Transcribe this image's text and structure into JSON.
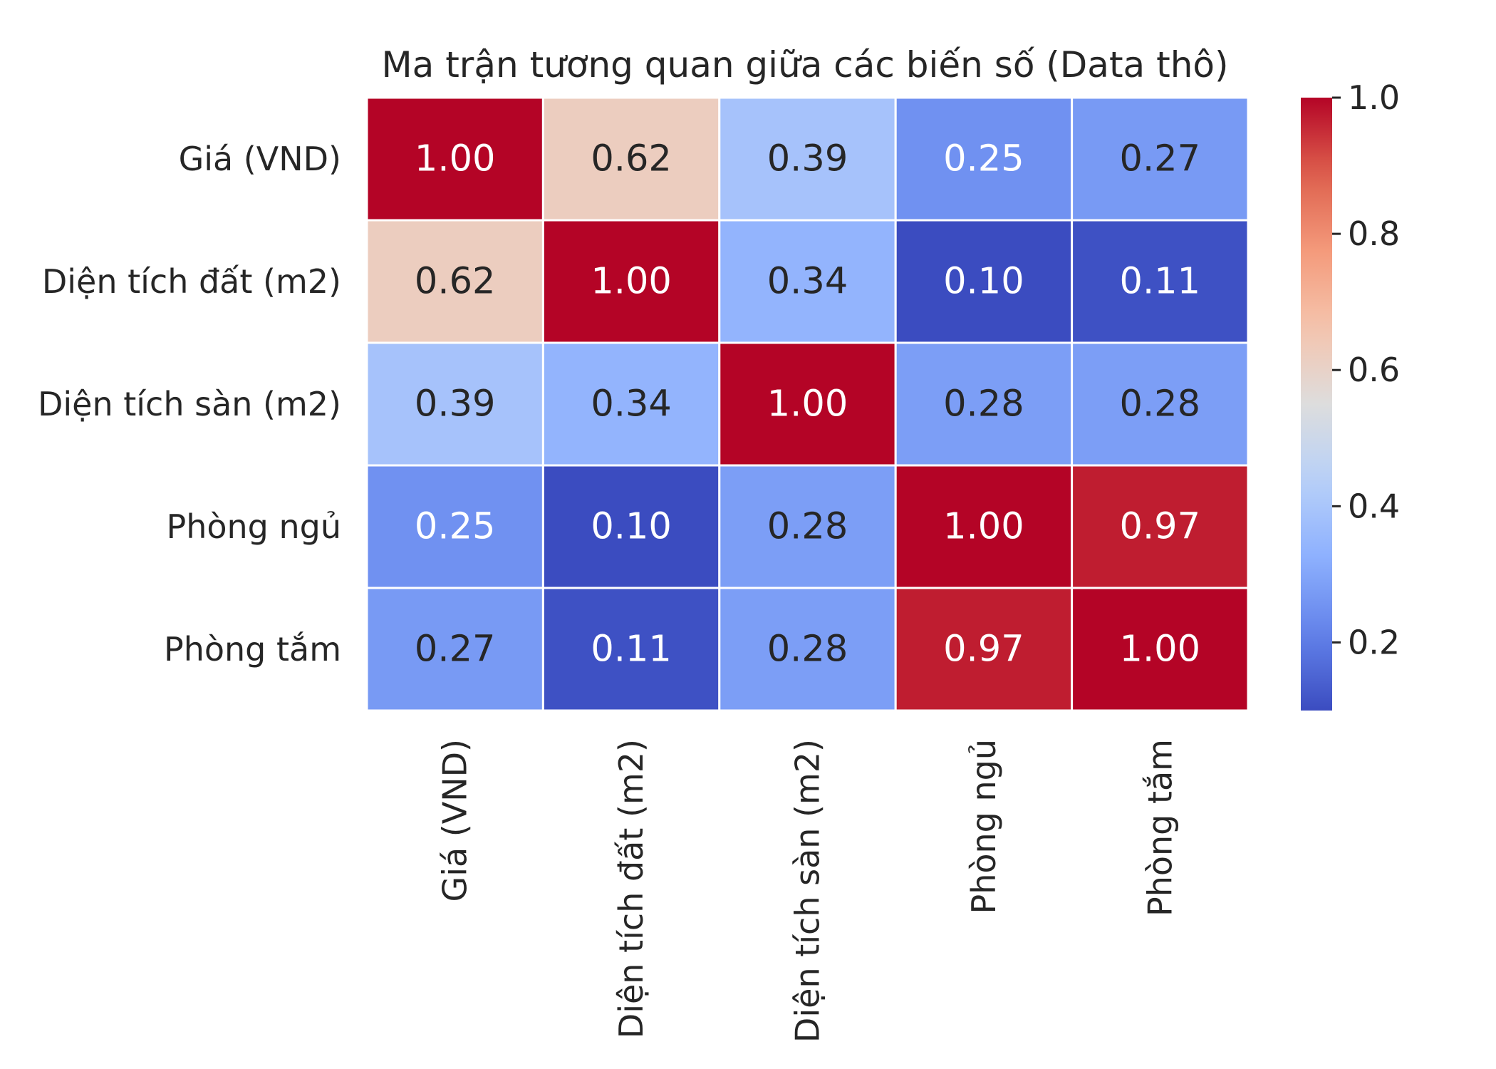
{
  "chart_data": {
    "type": "heatmap",
    "title": "Ma trận tương quan giữa các biến số (Data thô)",
    "rows": [
      "Giá (VND)",
      "Diện tích đất (m2)",
      "Diện tích sàn (m2)",
      "Phòng ngủ",
      "Phòng tắm"
    ],
    "columns": [
      "Giá (VND)",
      "Diện tích đất (m2)",
      "Diện tích sàn (m2)",
      "Phòng ngủ",
      "Phòng tắm"
    ],
    "values": [
      [
        1.0,
        0.62,
        0.39,
        0.25,
        0.27
      ],
      [
        0.62,
        1.0,
        0.34,
        0.1,
        0.11
      ],
      [
        0.39,
        0.34,
        1.0,
        0.28,
        0.28
      ],
      [
        0.25,
        0.1,
        0.28,
        1.0,
        0.97
      ],
      [
        0.27,
        0.11,
        0.28,
        0.97,
        1.0
      ]
    ],
    "annotation_format": "0.00",
    "colormap": "coolwarm",
    "colorbar": {
      "range": [
        0.1,
        1.0
      ],
      "ticks": [
        0.2,
        0.4,
        0.6,
        0.8,
        1.0
      ],
      "tick_labels": [
        "0.2",
        "0.4",
        "0.6",
        "0.8",
        "1.0"
      ]
    },
    "cell_border_color": "#ffffff",
    "text_dark_color": "#262626",
    "text_light_color": "#ffffff"
  }
}
